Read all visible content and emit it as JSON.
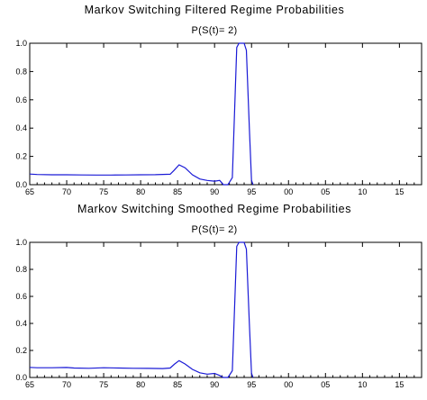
{
  "chart_data": [
    {
      "type": "line",
      "title": "Markov Switching Filtered Regime Probabilities",
      "subtitle": "P(S(t)= 2)",
      "xlabel": "",
      "ylabel": "",
      "xlim": [
        1965,
        2018
      ],
      "ylim": [
        0,
        1.0
      ],
      "x_ticks": [
        1965,
        1970,
        1975,
        1980,
        1985,
        1990,
        1995,
        2000,
        2005,
        2010,
        2015
      ],
      "x_tick_labels": [
        "65",
        "70",
        "75",
        "80",
        "85",
        "90",
        "95",
        "00",
        "05",
        "10",
        "15"
      ],
      "y_ticks": [
        0.0,
        0.2,
        0.4,
        0.6,
        0.8,
        1.0
      ],
      "y_tick_labels": [
        "0.0",
        "0.2",
        "0.4",
        "0.6",
        "0.8",
        "1.0"
      ],
      "grid": false,
      "series": [
        {
          "color": "#1a1ad6",
          "points": [
            [
              1965,
              0.075
            ],
            [
              1966,
              0.072
            ],
            [
              1968,
              0.07
            ],
            [
              1970,
              0.07
            ],
            [
              1972,
              0.069
            ],
            [
              1974,
              0.068
            ],
            [
              1976,
              0.068
            ],
            [
              1978,
              0.069
            ],
            [
              1980,
              0.07
            ],
            [
              1982,
              0.071
            ],
            [
              1984,
              0.074
            ],
            [
              1984.5,
              0.1
            ],
            [
              1985.2,
              0.14
            ],
            [
              1986,
              0.12
            ],
            [
              1987,
              0.07
            ],
            [
              1988,
              0.04
            ],
            [
              1989,
              0.03
            ],
            [
              1990,
              0.025
            ],
            [
              1990.7,
              0.03
            ],
            [
              1991.2,
              0.0
            ],
            [
              1991.8,
              0.0
            ],
            [
              1992.4,
              0.05
            ],
            [
              1992.7,
              0.5
            ],
            [
              1993.0,
              0.97
            ],
            [
              1993.3,
              1.0
            ],
            [
              1994.0,
              1.0
            ],
            [
              1994.3,
              0.95
            ],
            [
              1994.7,
              0.4
            ],
            [
              1995.0,
              0.03
            ],
            [
              1995.2,
              0.0
            ]
          ]
        }
      ]
    },
    {
      "type": "line",
      "title": "Markov Switching Smoothed Regime Probabilities",
      "subtitle": "P(S(t)= 2)",
      "xlabel": "",
      "ylabel": "",
      "xlim": [
        1965,
        2018
      ],
      "ylim": [
        0,
        1.0
      ],
      "x_ticks": [
        1965,
        1970,
        1975,
        1980,
        1985,
        1990,
        1995,
        2000,
        2005,
        2010,
        2015
      ],
      "x_tick_labels": [
        "65",
        "70",
        "75",
        "80",
        "85",
        "90",
        "95",
        "00",
        "05",
        "10",
        "15"
      ],
      "y_ticks": [
        0.0,
        0.2,
        0.4,
        0.6,
        0.8,
        1.0
      ],
      "y_tick_labels": [
        "0.0",
        "0.2",
        "0.4",
        "0.6",
        "0.8",
        "1.0"
      ],
      "grid": false,
      "series": [
        {
          "color": "#1a1ad6",
          "points": [
            [
              1965,
              0.075
            ],
            [
              1966,
              0.072
            ],
            [
              1968,
              0.072
            ],
            [
              1970,
              0.074
            ],
            [
              1971,
              0.07
            ],
            [
              1973,
              0.068
            ],
            [
              1975,
              0.072
            ],
            [
              1977,
              0.07
            ],
            [
              1979,
              0.068
            ],
            [
              1981,
              0.067
            ],
            [
              1983,
              0.066
            ],
            [
              1984,
              0.07
            ],
            [
              1984.6,
              0.1
            ],
            [
              1985.2,
              0.125
            ],
            [
              1986,
              0.1
            ],
            [
              1987,
              0.06
            ],
            [
              1988,
              0.035
            ],
            [
              1989,
              0.025
            ],
            [
              1990,
              0.03
            ],
            [
              1990.7,
              0.015
            ],
            [
              1991.2,
              0.0
            ],
            [
              1991.8,
              0.0
            ],
            [
              1992.4,
              0.05
            ],
            [
              1992.7,
              0.5
            ],
            [
              1993.0,
              0.97
            ],
            [
              1993.3,
              1.0
            ],
            [
              1994.0,
              1.0
            ],
            [
              1994.3,
              0.95
            ],
            [
              1994.7,
              0.4
            ],
            [
              1995.0,
              0.03
            ],
            [
              1995.2,
              0.0
            ]
          ]
        }
      ]
    }
  ]
}
